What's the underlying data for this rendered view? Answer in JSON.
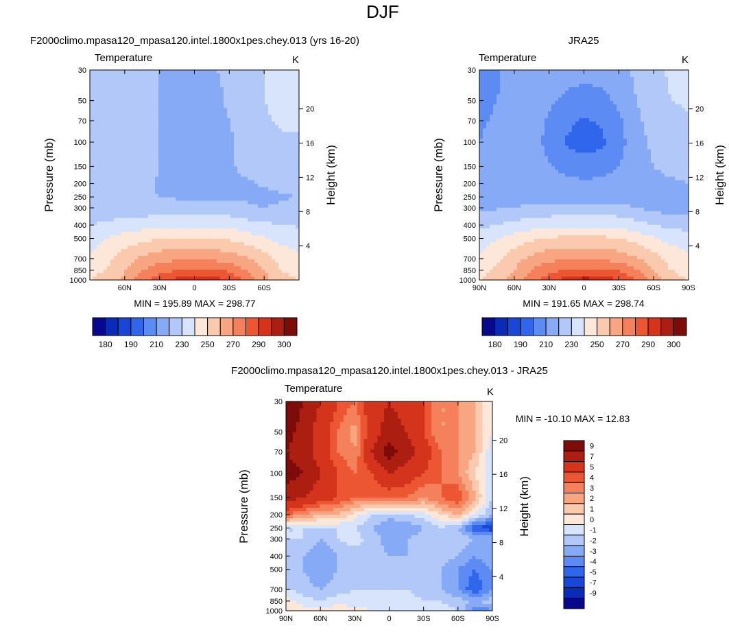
{
  "page_title": "DJF",
  "colors": {
    "temp_levels": [
      "#08088c",
      "#0a2ab8",
      "#1846d9",
      "#3066ec",
      "#5d8bf4",
      "#87aaf6",
      "#b1c8f9",
      "#d7e4fb",
      "#fde7d8",
      "#fbc9ae",
      "#f8a682",
      "#f4815b",
      "#ec5632",
      "#d4341c",
      "#ab1e11",
      "#7d0b08"
    ],
    "diff_levels": [
      "#08088c",
      "#0a2ab8",
      "#1846d9",
      "#3066ec",
      "#5d8bf4",
      "#87aaf6",
      "#b1c8f9",
      "#d7e4fb",
      "#fde7d8",
      "#fbc9ae",
      "#f8a682",
      "#f4815b",
      "#ec5632",
      "#d4341c",
      "#ab1e11",
      "#7d0b08"
    ]
  },
  "chart_data": [
    {
      "id": "model",
      "type": "heatmap",
      "title": "F2000climo.mpasa120_mpasa120.intel.1800x1pes.chey.013 (yrs 16-20)",
      "left_string": "Temperature",
      "right_string": "K",
      "ylabel": "Pressure (mb)",
      "y2label": "Height (km)",
      "x_ticks": [
        "60N",
        "30N",
        "0",
        "30S",
        "60S"
      ],
      "x_tick_values": [
        60,
        30,
        0,
        -30,
        -60
      ],
      "xlim": [
        90,
        -90
      ],
      "p_ticks": [
        "30",
        "50",
        "70",
        "100",
        "150",
        "200",
        "250",
        "300",
        "400",
        "500",
        "700",
        "850",
        "1000"
      ],
      "p_tick_values": [
        30,
        50,
        70,
        100,
        150,
        200,
        250,
        300,
        400,
        500,
        700,
        850,
        1000
      ],
      "ylim_mb": [
        1000,
        30
      ],
      "z_ticks": [
        "4",
        "8",
        "12",
        "16",
        "20"
      ],
      "z_tick_values": [
        4,
        8,
        12,
        16,
        20
      ],
      "stats": "MIN = 195.89  MAX = 298.77",
      "min": 195.89,
      "max": 298.77,
      "cbar_labels": [
        "180",
        "190",
        "210",
        "230",
        "250",
        "270",
        "290",
        "300"
      ],
      "contour_levels": [
        180,
        185,
        190,
        200,
        210,
        220,
        230,
        240,
        250,
        260,
        270,
        280,
        290,
        295,
        300
      ],
      "fields": {
        "lat": [
          90,
          75,
          60,
          45,
          30,
          15,
          0,
          -15,
          -30,
          -45,
          -60,
          -75,
          -90
        ],
        "p": [
          30,
          50,
          70,
          100,
          150,
          200,
          250,
          300,
          400,
          500,
          700,
          850,
          1000
        ],
        "T": [
          [
            226,
            226,
            224,
            224,
            220,
            219,
            219,
            219,
            222,
            224,
            230,
            232,
            232
          ],
          [
            224,
            224,
            226,
            227,
            220,
            217,
            216,
            216,
            222,
            224,
            230,
            232,
            232
          ],
          [
            223,
            224,
            226,
            228,
            220,
            214,
            212,
            213,
            220,
            224,
            229,
            231,
            231
          ],
          [
            222,
            223,
            226,
            227,
            220,
            213,
            210,
            212,
            219,
            222,
            226,
            229,
            229
          ],
          [
            220,
            222,
            224,
            224,
            220,
            215,
            213,
            215,
            219,
            222,
            224,
            226,
            226
          ],
          [
            220,
            221,
            222,
            222,
            219,
            216,
            215,
            216,
            218,
            219,
            221,
            223,
            224
          ],
          [
            221,
            221,
            221,
            221,
            220,
            219,
            218,
            219,
            219,
            218,
            217,
            219,
            220
          ],
          [
            223,
            224,
            224,
            224,
            224,
            224,
            223,
            224,
            224,
            222,
            220,
            222,
            223
          ],
          [
            230,
            232,
            234,
            236,
            237,
            238,
            238,
            238,
            237,
            234,
            232,
            230,
            229
          ],
          [
            236,
            240,
            245,
            247,
            250,
            251,
            251,
            251,
            249,
            245,
            241,
            237,
            235
          ],
          [
            241,
            247,
            255,
            262,
            266,
            268,
            268,
            268,
            265,
            261,
            254,
            246,
            242
          ],
          [
            245,
            251,
            259,
            270,
            276,
            280,
            281,
            281,
            278,
            270,
            259,
            249,
            245
          ],
          [
            250,
            256,
            263,
            275,
            285,
            293,
            297,
            296,
            289,
            279,
            264,
            254,
            250
          ]
        ]
      }
    },
    {
      "id": "obs",
      "type": "heatmap",
      "title": "JRA25",
      "left_string": "Temperature",
      "right_string": "K",
      "ylabel": "Pressure (mb)",
      "y2label": "Height (km)",
      "x_ticks": [
        "90N",
        "60N",
        "30N",
        "0",
        "30S",
        "60S",
        "90S"
      ],
      "x_tick_values": [
        90,
        60,
        30,
        0,
        -30,
        -60,
        -90
      ],
      "xlim": [
        90,
        -90
      ],
      "p_ticks": [
        "30",
        "50",
        "70",
        "100",
        "150",
        "200",
        "250",
        "300",
        "400",
        "500",
        "700",
        "850",
        "1000"
      ],
      "p_tick_values": [
        30,
        50,
        70,
        100,
        150,
        200,
        250,
        300,
        400,
        500,
        700,
        850,
        1000
      ],
      "ylim_mb": [
        1000,
        30
      ],
      "z_ticks": [
        "4",
        "8",
        "12",
        "16",
        "20"
      ],
      "z_tick_values": [
        4,
        8,
        12,
        16,
        20
      ],
      "stats": "MIN = 191.65  MAX = 298.74",
      "min": 191.65,
      "max": 298.74,
      "cbar_labels": [
        "180",
        "190",
        "210",
        "230",
        "250",
        "270",
        "290",
        "300"
      ],
      "contour_levels": [
        180,
        185,
        190,
        200,
        210,
        220,
        230,
        240,
        250,
        260,
        270,
        280,
        290,
        295,
        300
      ],
      "fields": {
        "lat": [
          90,
          75,
          60,
          45,
          30,
          15,
          0,
          -15,
          -30,
          -45,
          -60,
          -75,
          -90
        ],
        "p": [
          30,
          50,
          70,
          100,
          150,
          200,
          250,
          300,
          400,
          500,
          700,
          850,
          1000
        ],
        "T": [
          [
            206,
            208,
            216,
            218,
            216,
            214,
            213,
            214,
            216,
            222,
            226,
            232,
            232
          ],
          [
            208,
            210,
            216,
            218,
            212,
            208,
            206,
            207,
            212,
            220,
            225,
            230,
            231
          ],
          [
            209,
            211,
            215,
            216,
            208,
            202,
            199,
            201,
            208,
            218,
            224,
            228,
            229
          ],
          [
            210,
            212,
            214,
            214,
            207,
            199,
            196,
            198,
            206,
            216,
            222,
            225,
            226
          ],
          [
            212,
            214,
            215,
            215,
            211,
            206,
            204,
            205,
            210,
            216,
            220,
            222,
            222
          ],
          [
            214,
            215,
            216,
            216,
            215,
            213,
            212,
            213,
            215,
            217,
            218,
            219,
            220
          ],
          [
            216,
            216,
            216,
            216,
            216,
            215,
            215,
            215,
            216,
            216,
            216,
            216,
            217
          ],
          [
            218,
            219,
            220,
            222,
            223,
            224,
            224,
            224,
            223,
            220,
            217,
            216,
            217
          ],
          [
            228,
            230,
            233,
            236,
            237,
            238,
            238,
            238,
            237,
            234,
            230,
            227,
            226
          ],
          [
            236,
            239,
            244,
            248,
            251,
            252,
            252,
            252,
            250,
            246,
            241,
            237,
            235
          ],
          [
            241,
            248,
            256,
            263,
            267,
            269,
            269,
            269,
            266,
            261,
            254,
            246,
            242
          ],
          [
            245,
            252,
            260,
            271,
            277,
            281,
            282,
            282,
            279,
            271,
            260,
            250,
            245
          ],
          [
            250,
            257,
            264,
            276,
            286,
            294,
            298,
            297,
            290,
            280,
            265,
            255,
            250
          ]
        ]
      }
    },
    {
      "id": "diff",
      "type": "heatmap",
      "title": "F2000climo.mpasa120_mpasa120.intel.1800x1pes.chey.013 - JRA25",
      "left_string": "Temperature",
      "right_string": "K",
      "ylabel": "Pressure (mb)",
      "y2label": "Height (km)",
      "x_ticks": [
        "90N",
        "60N",
        "30N",
        "0",
        "30S",
        "60S",
        "90S"
      ],
      "x_tick_values": [
        90,
        60,
        30,
        0,
        -30,
        -60,
        -90
      ],
      "xlim": [
        90,
        -90
      ],
      "p_ticks": [
        "30",
        "50",
        "70",
        "100",
        "150",
        "200",
        "250",
        "300",
        "400",
        "500",
        "700",
        "850",
        "1000"
      ],
      "p_tick_values": [
        30,
        50,
        70,
        100,
        150,
        200,
        250,
        300,
        400,
        500,
        700,
        850,
        1000
      ],
      "ylim_mb": [
        1000,
        30
      ],
      "z_ticks": [
        "4",
        "8",
        "12",
        "16",
        "20"
      ],
      "z_tick_values": [
        4,
        8,
        12,
        16,
        20
      ],
      "stats": "MIN = -10.10  MAX = 12.83",
      "min": -10.1,
      "max": 12.83,
      "cbar_labels": [
        "9",
        "7",
        "5",
        "4",
        "3",
        "2",
        "1",
        "0",
        "-1",
        "-2",
        "-3",
        "-4",
        "-5",
        "-7",
        "-9"
      ],
      "contour_levels": [
        -9,
        -7,
        -5,
        -4,
        -3,
        -2,
        -1,
        0,
        1,
        2,
        3,
        4,
        5,
        7,
        9
      ],
      "fields": {
        "lat": [
          90,
          75,
          60,
          45,
          30,
          15,
          0,
          -15,
          -30,
          -45,
          -60,
          -75,
          -90
        ],
        "p": [
          30,
          50,
          70,
          100,
          150,
          200,
          250,
          300,
          400,
          500,
          700,
          850,
          1000
        ],
        "T": [
          [
            11,
            9,
            7,
            5,
            4,
            6,
            7,
            6,
            5,
            3,
            3,
            2,
            0
          ],
          [
            10,
            8,
            6,
            4,
            2.5,
            6,
            8,
            7,
            5,
            3,
            3,
            2,
            0
          ],
          [
            9,
            8,
            6,
            4,
            3,
            7,
            10,
            8,
            6,
            4,
            3,
            2,
            -1
          ],
          [
            10,
            9,
            7,
            5,
            4,
            5,
            7,
            6,
            5,
            4,
            3,
            1,
            -1
          ],
          [
            8,
            7,
            6,
            5,
            4,
            4,
            4,
            4,
            3,
            4,
            5,
            2,
            -1
          ],
          [
            4,
            3,
            2,
            2,
            0.5,
            -1,
            -1.5,
            -1,
            -0.5,
            1,
            2,
            0,
            -2
          ],
          [
            -1,
            -1,
            -1,
            -1,
            -1,
            -2,
            -3,
            -3,
            -2,
            -1,
            -2,
            -5,
            -6
          ],
          [
            -1,
            -1,
            -2,
            -1,
            -0.5,
            -1.5,
            -2.5,
            -2,
            -1.5,
            -1,
            -1,
            -2,
            -2
          ],
          [
            -1,
            -2,
            -3,
            -2,
            -1.5,
            -1.5,
            -2,
            -2,
            -1.5,
            -1.5,
            -2,
            -3,
            -2
          ],
          [
            -1,
            -2,
            -3,
            -2,
            -1.5,
            -1.5,
            -1.5,
            -1.5,
            -1.5,
            -2,
            -3,
            -4,
            -3
          ],
          [
            -1,
            -1.5,
            -2,
            -1.5,
            -1,
            -1,
            -1,
            -1,
            -1.5,
            -2,
            -3,
            -5,
            -3
          ],
          [
            0.5,
            -0.5,
            -1,
            -0.5,
            -0.5,
            -0.5,
            -0.5,
            -0.5,
            -1,
            -1,
            -1.5,
            -2,
            -1.5
          ],
          [
            1,
            0.5,
            0.5,
            0.8,
            0.3,
            0,
            0,
            0,
            -0.5,
            -0.5,
            -1,
            -4,
            -3
          ]
        ]
      }
    }
  ]
}
